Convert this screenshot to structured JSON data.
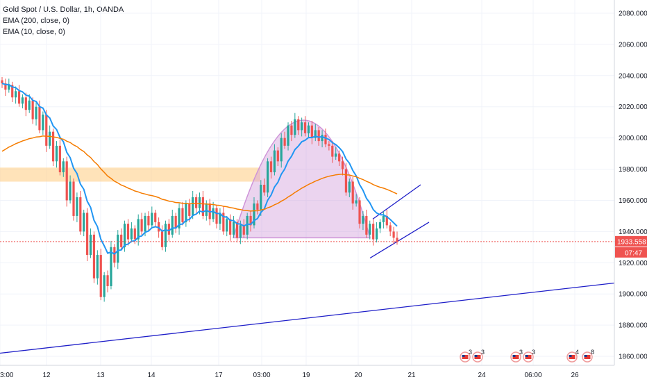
{
  "legend": {
    "symbol": "Gold Spot / U.S. Dollar, 1h, OANDA",
    "ema200": "EMA (200, close, 0)",
    "ema10": "EMA (10, close, 0)"
  },
  "colors": {
    "up": "#26a69a",
    "down": "#ef5350",
    "ema10": "#2196f3",
    "ema200": "#f57c00",
    "zone": "#ffcc80",
    "arc": "#ce93d8",
    "trendline": "#1e1ec8",
    "channel": "#1e1ec8",
    "price_line": "#ef5350"
  },
  "price_tag": {
    "value": "1933.558",
    "countdown": "07:47"
  },
  "event_badges": [
    {
      "count": "3",
      "icon": "us-flag-icon"
    },
    {
      "count": "3",
      "icon": "us-flag-icon"
    },
    {
      "count": "3",
      "icon": "us-flag-icon"
    },
    {
      "count": "3",
      "icon": "us-flag-icon"
    },
    {
      "count": "4",
      "icon": "us-flag-icon"
    },
    {
      "count": "8",
      "icon": "us-flag-icon"
    }
  ],
  "chart_data": {
    "type": "candlestick",
    "title": "Gold Spot / U.S. Dollar, 1h, OANDA",
    "ylim": [
      1856,
      2084
    ],
    "y_ticks": [
      1860,
      1880,
      1900,
      1920,
      1940,
      1960,
      1980,
      2000,
      2020,
      2040,
      2060,
      2080
    ],
    "y_tick_labels": [
      "1860.000",
      "1880.000",
      "1900.000",
      "1920.000",
      "1940.000",
      "1960.000",
      "1980.000",
      "2000.000",
      "2020.000",
      "2040.000",
      "2060.000",
      "2080.000"
    ],
    "x_tick_labels": [
      "3:00",
      "12",
      "13",
      "14",
      "17",
      "03:00",
      "19",
      "20",
      "21",
      "24",
      "06:00",
      "26"
    ],
    "grid": true,
    "candle_closes": [
      2035,
      2031,
      2034,
      2026,
      2030,
      2022,
      2026,
      2018,
      2024,
      2012,
      2020,
      2005,
      2015,
      1995,
      2004,
      1985,
      1995,
      1978,
      1985,
      1960,
      1972,
      1950,
      1962,
      1940,
      1952,
      1925,
      1938,
      1910,
      1925,
      1898,
      1912,
      1905,
      1930,
      1920,
      1938,
      1930,
      1945,
      1935,
      1942,
      1935,
      1948,
      1940,
      1950,
      1944,
      1952,
      1946,
      1940,
      1930,
      1945,
      1938,
      1950,
      1942,
      1955,
      1946,
      1958,
      1950,
      1962,
      1955,
      1962,
      1950,
      1958,
      1948,
      1955,
      1945,
      1952,
      1940,
      1948,
      1938,
      1946,
      1936,
      1944,
      1938,
      1950,
      1944,
      1958,
      1954,
      1970,
      1965,
      1985,
      1978,
      1992,
      1985,
      2000,
      1995,
      2008,
      2002,
      2012,
      2005,
      2010,
      2003,
      2008,
      2000,
      2005,
      1998,
      2002,
      1996,
      1995,
      1988,
      1990,
      1985,
      1980,
      1965,
      1972,
      1958,
      1960,
      1945,
      1950,
      1938,
      1945,
      1935,
      1942,
      1946,
      1950,
      1944,
      1940,
      1936,
      1933.558
    ],
    "ema200_level": 1975,
    "resistance_zone": [
      1972,
      1981
    ],
    "last_price": 1933.558
  }
}
